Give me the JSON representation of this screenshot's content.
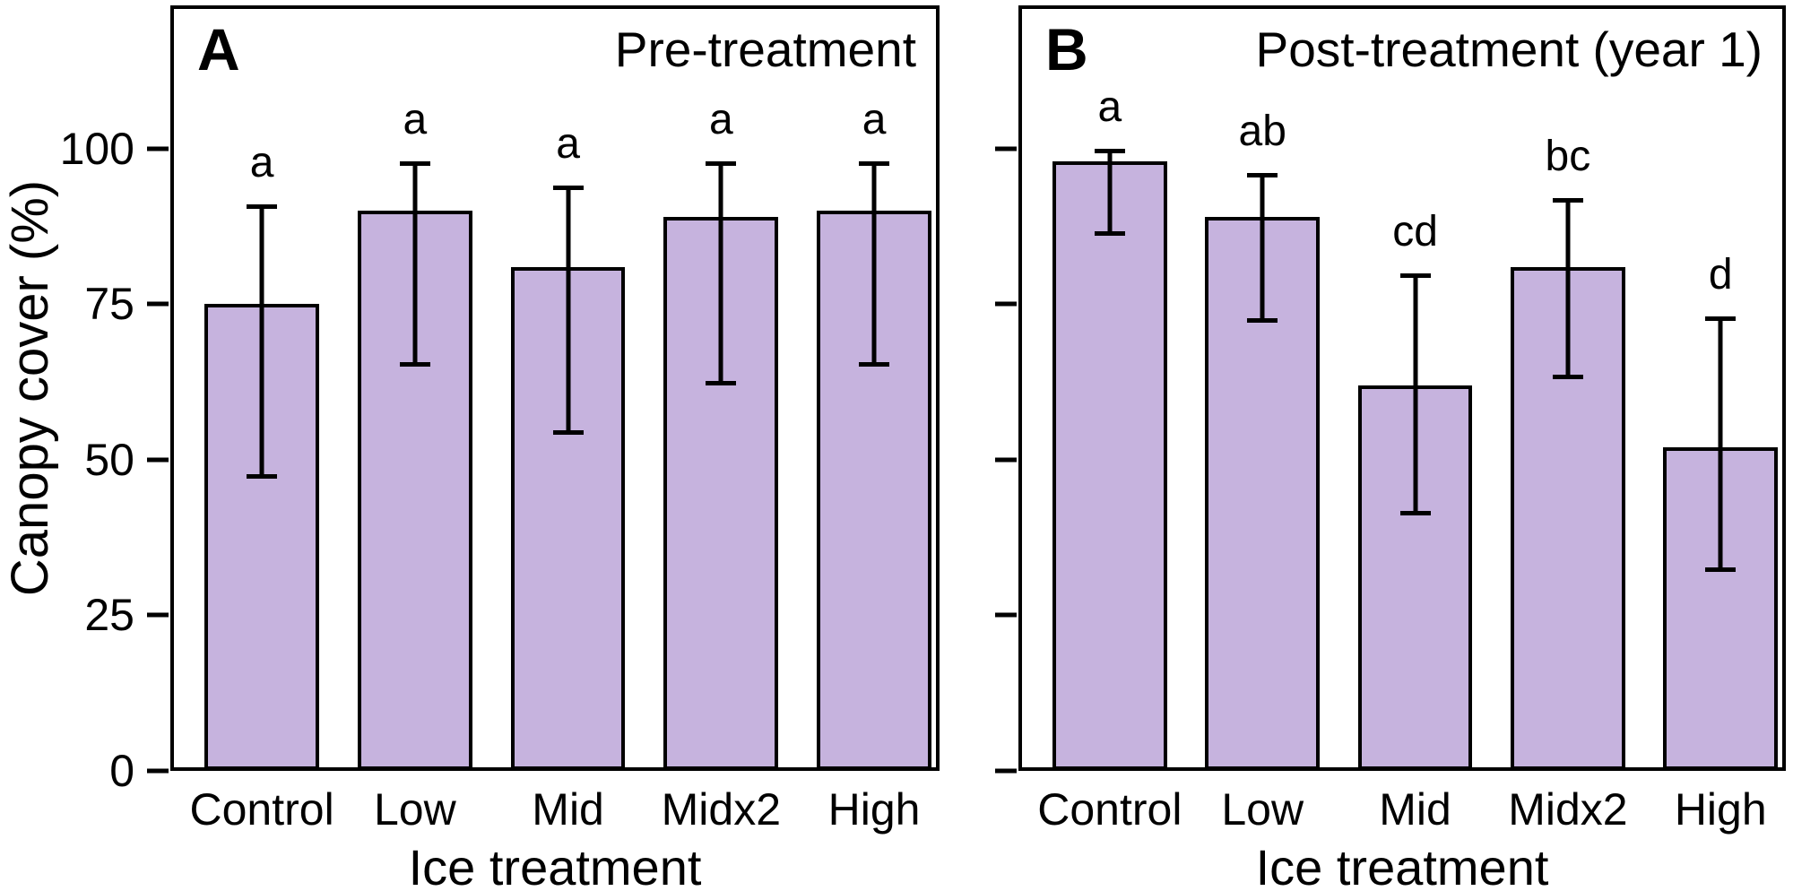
{
  "figure": {
    "ylabel": "Canopy cover (%)",
    "bar_fill": "#c6b3de",
    "axis_color": "#000000"
  },
  "chart_data": [
    {
      "type": "bar",
      "panel_label": "A",
      "title": "Pre-treatment",
      "xlabel": "Ice treatment",
      "ylabel": "Canopy cover (%)",
      "categories": [
        "Control",
        "Low",
        "Mid",
        "Midx2",
        "High"
      ],
      "values": [
        75,
        90,
        81,
        89,
        90
      ],
      "error_upper": [
        91,
        98,
        94,
        98,
        98
      ],
      "error_lower": [
        47,
        65,
        54,
        62,
        65
      ],
      "sig_letters": [
        "a",
        "a",
        "a",
        "a",
        "a"
      ],
      "yticks": [
        0,
        25,
        50,
        75,
        100
      ],
      "ylim": [
        0,
        123
      ],
      "show_ytick_labels": true,
      "grid": false,
      "legend": "none"
    },
    {
      "type": "bar",
      "panel_label": "B",
      "title": "Post-treatment (year 1)",
      "xlabel": "Ice treatment",
      "ylabel": "Canopy cover (%)",
      "categories": [
        "Control",
        "Low",
        "Mid",
        "Midx2",
        "High"
      ],
      "values": [
        98,
        89,
        62,
        81,
        52
      ],
      "error_upper": [
        100,
        96,
        80,
        92,
        73
      ],
      "error_lower": [
        86,
        72,
        41,
        63,
        32
      ],
      "sig_letters": [
        "a",
        "ab",
        "cd",
        "bc",
        "d"
      ],
      "yticks": [
        0,
        25,
        50,
        75,
        100
      ],
      "ylim": [
        0,
        123
      ],
      "show_ytick_labels": false,
      "grid": false,
      "legend": "none"
    }
  ]
}
